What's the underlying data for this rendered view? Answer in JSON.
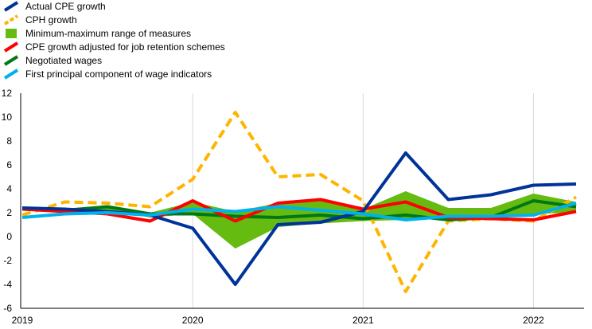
{
  "chart_data": {
    "type": "line",
    "x": [
      "2019Q1",
      "2019Q2",
      "2019Q3",
      "2019Q4",
      "2020Q1",
      "2020Q2",
      "2020Q3",
      "2020Q4",
      "2021Q1",
      "2021Q2",
      "2021Q3",
      "2021Q4",
      "2022Q1",
      "2022Q2"
    ],
    "x_tick_labels": [
      "2019",
      "2020",
      "2021",
      "2022"
    ],
    "x_tick_positions": [
      "2019Q1",
      "2020Q1",
      "2021Q1",
      "2022Q1"
    ],
    "ylim": [
      -6,
      12
    ],
    "y_ticks": [
      -6,
      -4,
      -2,
      0,
      2,
      4,
      6,
      8,
      10,
      12
    ],
    "grid": "vertical lines at year boundaries",
    "legend_position": "top-left",
    "band": {
      "name": "Minimum-maximum range of measures",
      "color": "#66bb11",
      "low": [
        2.2,
        2.1,
        2.2,
        1.6,
        1.9,
        -1.0,
        0.8,
        1.1,
        1.3,
        1.4,
        1.5,
        1.7,
        1.9,
        2.0
      ],
      "high": [
        2.4,
        2.3,
        2.6,
        2.0,
        2.9,
        2.1,
        2.8,
        3.0,
        2.3,
        3.8,
        2.4,
        2.4,
        3.6,
        2.9
      ]
    },
    "series": [
      {
        "name": "Actual CPE growth",
        "color": "#003399",
        "dash": "solid",
        "values": [
          2.4,
          2.3,
          2.1,
          1.8,
          0.7,
          -4.0,
          1.0,
          1.2,
          2.1,
          7.0,
          3.1,
          3.5,
          4.3,
          4.4
        ]
      },
      {
        "name": "CPH growth",
        "color": "#ffb400",
        "dash": "dashed",
        "values": [
          1.8,
          2.9,
          2.8,
          2.5,
          4.8,
          10.4,
          5.0,
          5.2,
          3.0,
          -4.6,
          1.3,
          1.5,
          1.3,
          3.3
        ]
      },
      {
        "name": "CPE growth adjusted for job retention schemes",
        "color": "#ff0000",
        "dash": "solid",
        "values": [
          2.3,
          2.1,
          1.9,
          1.3,
          3.0,
          1.3,
          2.8,
          3.1,
          2.3,
          2.9,
          1.6,
          1.5,
          1.4,
          2.1
        ]
      },
      {
        "name": "Negotiated wages",
        "color": "#007816",
        "dash": "solid",
        "values": [
          2.3,
          2.2,
          2.5,
          1.9,
          1.9,
          1.7,
          1.6,
          1.8,
          1.5,
          1.8,
          1.4,
          1.6,
          3.0,
          2.5
        ]
      },
      {
        "name": "First principal component of wage indicators",
        "color": "#00b1ea",
        "dash": "solid",
        "values": [
          1.6,
          1.9,
          2.0,
          1.8,
          2.3,
          2.1,
          2.5,
          2.2,
          1.9,
          1.4,
          1.7,
          1.7,
          1.8,
          2.8
        ]
      }
    ],
    "legend": [
      {
        "label": "Actual CPE growth",
        "color": "#003399",
        "style": "line"
      },
      {
        "label": "CPH growth",
        "color": "#ffb400",
        "style": "dashed"
      },
      {
        "label": "Minimum-maximum range of measures",
        "color": "#66bb11",
        "style": "box"
      },
      {
        "label": "CPE growth adjusted for job retention schemes",
        "color": "#ff0000",
        "style": "line"
      },
      {
        "label": "Negotiated wages",
        "color": "#007816",
        "style": "line"
      },
      {
        "label": "First principal component of wage indicators",
        "color": "#00b1ea",
        "style": "line"
      }
    ]
  }
}
